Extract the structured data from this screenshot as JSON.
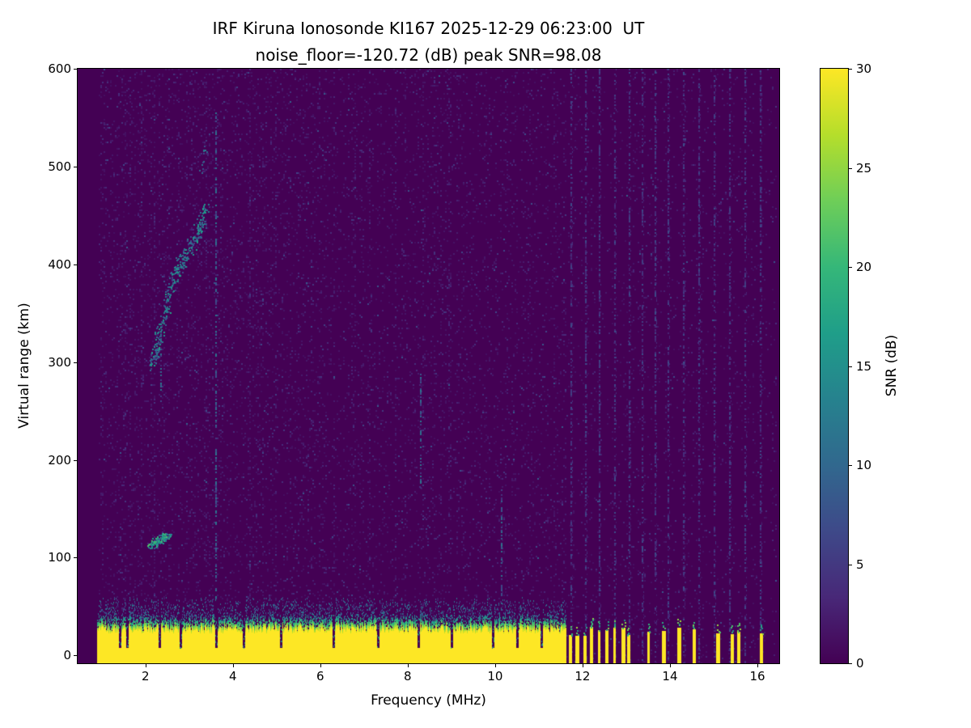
{
  "chart_data": {
    "type": "heatmap",
    "title": "IRF Kiruna Ionosonde KI167 2025-12-29 06:23:00  UT",
    "subtitle": "noise_floor=-120.72 (dB) peak SNR=98.08",
    "station": "IRF Kiruna Ionosonde KI167",
    "timestamp_ut": "2025-12-29 06:23:00",
    "noise_floor_db": -120.72,
    "peak_snr_db": 98.08,
    "xlabel": "Frequency (MHz)",
    "ylabel": "Virtual range (km)",
    "colorbar_label": "SNR (dB)",
    "xlim": [
      0.45,
      16.5
    ],
    "ylim": [
      -8,
      600
    ],
    "xticks": [
      2,
      4,
      6,
      8,
      10,
      12,
      14,
      16
    ],
    "yticks": [
      0,
      100,
      200,
      300,
      400,
      500,
      600
    ],
    "colorbar": {
      "min": 0,
      "max": 30,
      "ticks": [
        0,
        5,
        10,
        15,
        20,
        25,
        30
      ],
      "colormap": "viridis"
    },
    "grid": false,
    "features": {
      "ground_band": {
        "freq_start_mhz": 0.9,
        "freq_end_mhz": 11.62,
        "solid_top_km": 28,
        "mottle_height_km": 16,
        "gap_freqs_mhz": [
          1.42,
          1.58,
          2.32,
          2.8,
          3.62,
          4.25,
          5.1,
          6.3,
          7.32,
          8.25,
          9.0,
          9.95,
          10.5,
          11.05
        ]
      },
      "broken_columns_mhz": [
        11.72,
        11.88,
        12.05,
        12.2,
        12.38,
        12.55,
        12.72,
        12.92,
        13.05,
        13.5,
        13.85,
        14.2,
        14.55,
        15.1,
        15.42,
        15.58,
        16.1
      ],
      "f_trace_points": [
        [
          2.15,
          300
        ],
        [
          2.22,
          312
        ],
        [
          2.3,
          325
        ],
        [
          2.4,
          345
        ],
        [
          2.5,
          365
        ],
        [
          2.6,
          382
        ],
        [
          2.72,
          395
        ],
        [
          2.85,
          405
        ],
        [
          2.98,
          415
        ],
        [
          3.1,
          426
        ],
        [
          3.2,
          436
        ],
        [
          3.3,
          447
        ],
        [
          3.38,
          455
        ]
      ],
      "f_trace_upper_points": [
        [
          3.28,
          500
        ],
        [
          3.35,
          520
        ]
      ],
      "e_trace_points": [
        [
          2.12,
          112
        ],
        [
          2.25,
          117
        ],
        [
          2.4,
          121
        ],
        [
          2.55,
          124
        ]
      ],
      "vertical_streaks": [
        {
          "freq_mhz": 2.35,
          "km_range": [
            250,
            330
          ]
        },
        {
          "freq_mhz": 3.62,
          "km_range": [
            45,
            555
          ]
        },
        {
          "freq_mhz": 8.3,
          "km_range": [
            160,
            290
          ]
        },
        {
          "freq_mhz": 10.15,
          "km_range": [
            50,
            170
          ]
        }
      ],
      "noise_stripe_freqs_mhz": [
        11.72,
        12.05,
        12.38,
        12.72,
        13.05,
        13.35,
        13.65,
        13.95,
        14.3,
        14.65,
        15.0,
        15.35,
        15.7,
        16.05
      ]
    }
  },
  "colors": {
    "figure_background": "#ffffff",
    "axis_color": "#000000",
    "cmap_low": "#440154",
    "cmap_high": "#fde725",
    "viridis_stops": [
      "#440154",
      "#482878",
      "#3e4989",
      "#31688e",
      "#26828e",
      "#1f9e89",
      "#35b779",
      "#6ece58",
      "#b5de2b",
      "#fde725"
    ]
  }
}
